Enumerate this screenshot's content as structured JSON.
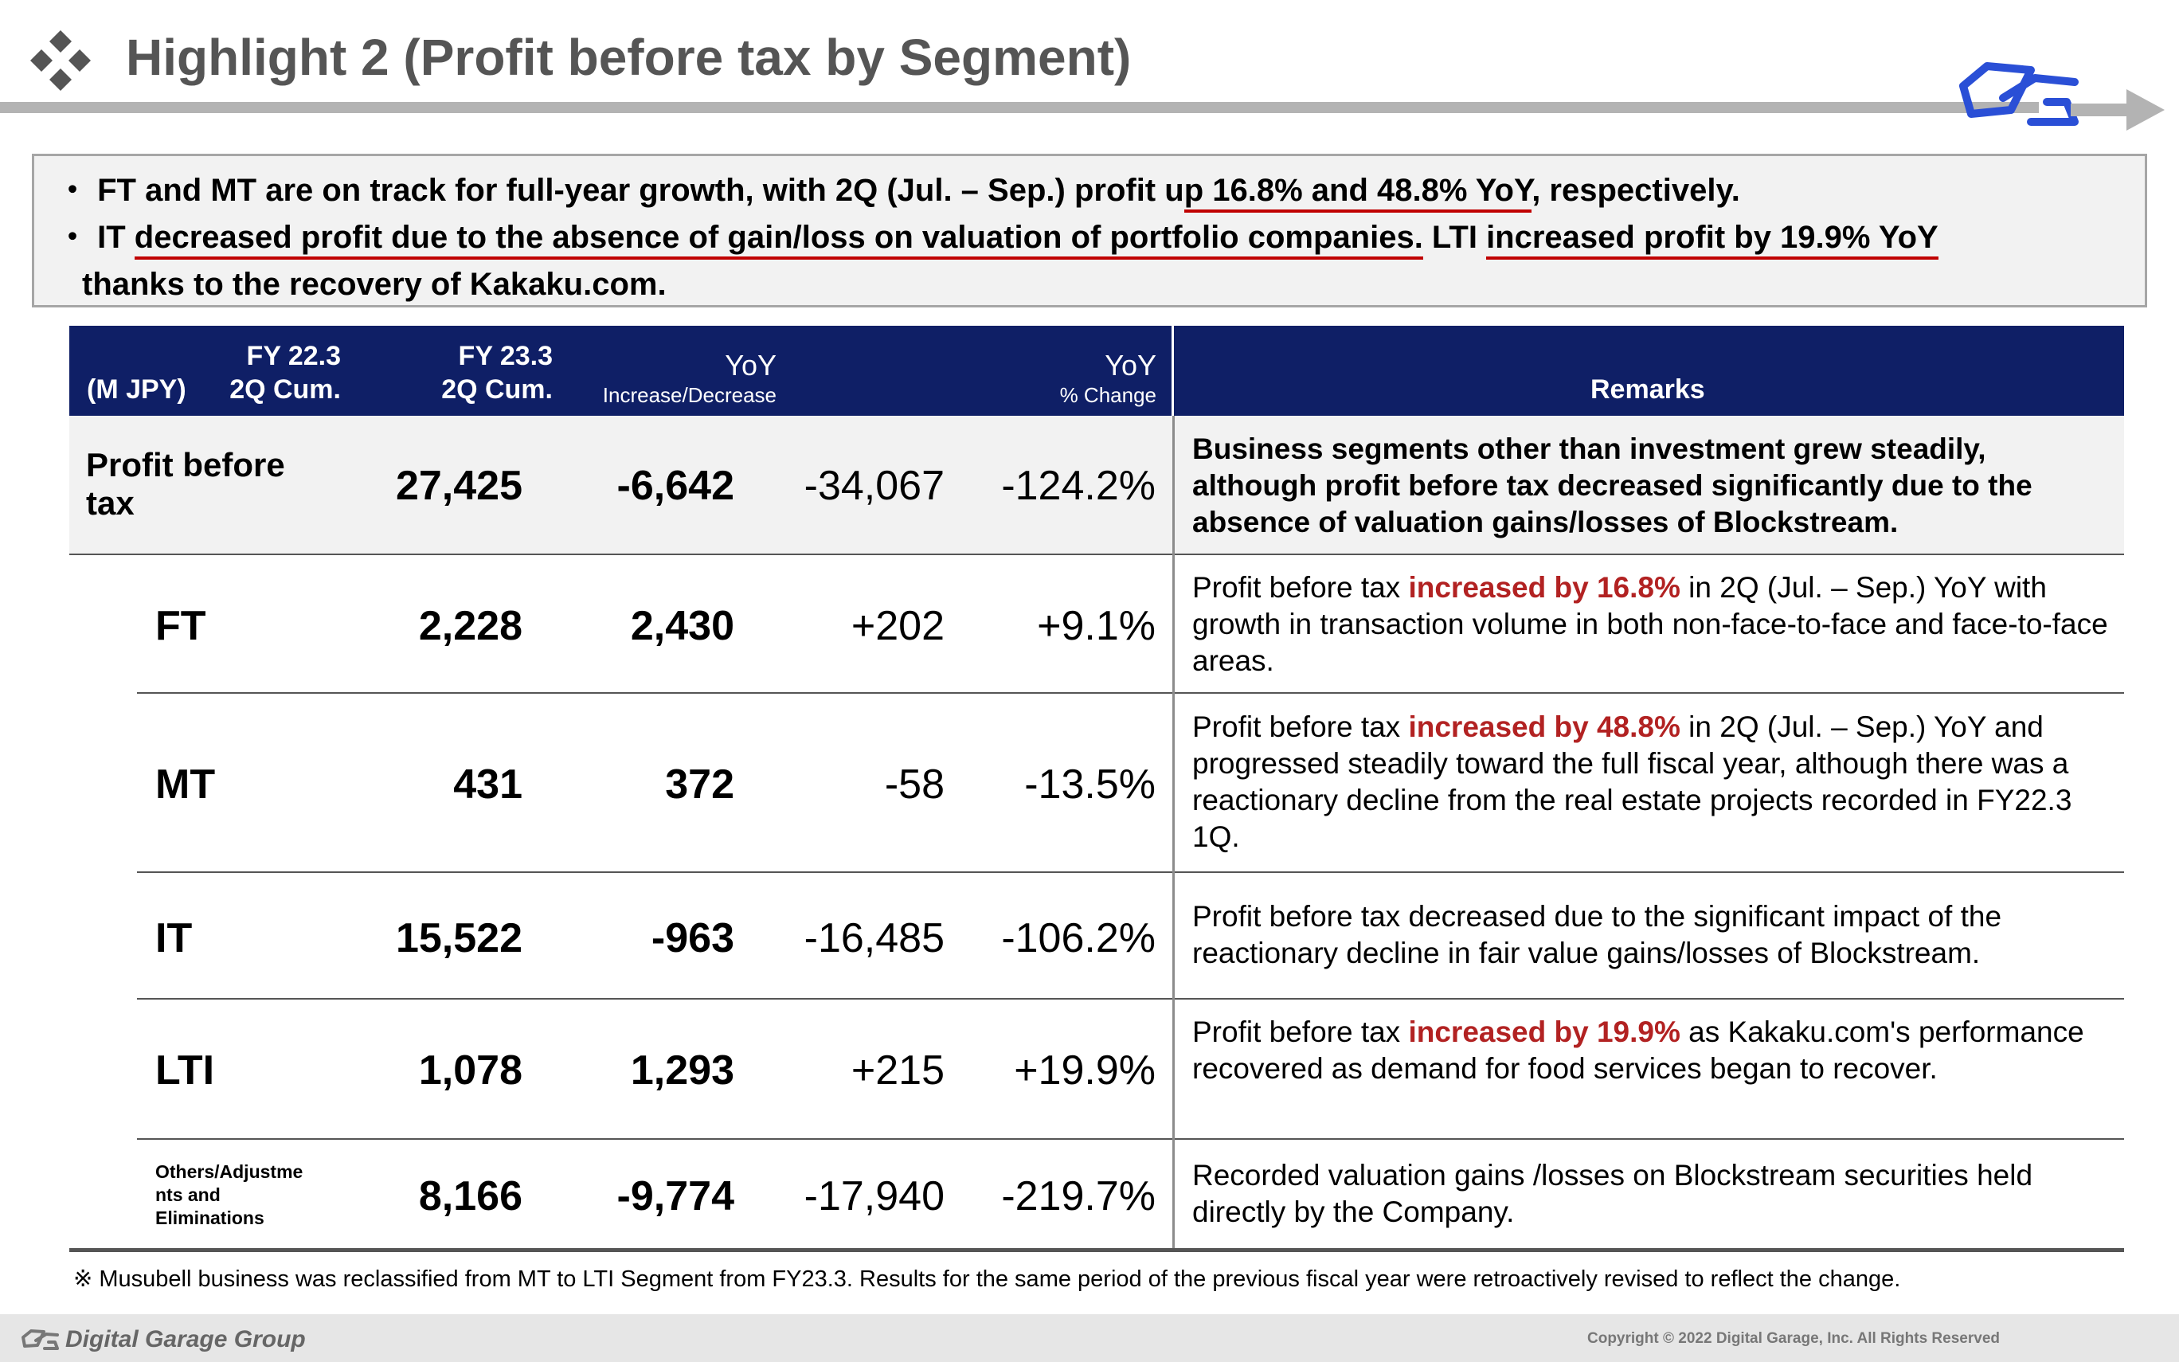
{
  "header": {
    "title": "Highlight 2 (Profit before tax by Segment)"
  },
  "summary": {
    "bullet": "・",
    "line1_a": "FT and MT are on track for full-year growth, with 2Q (Jul. – Sep.) profit u",
    "line1_b": "p 16.8% and 48.8% YoY",
    "line1_c": ", respectively.",
    "line2_a": "IT ",
    "line2_b": "decreased profit due to the absence of gain/loss on valuation of portfolio companies.",
    "line2_c": " LTI ",
    "line2_d": "increased profit by 19.9% YoY",
    "line3": "thanks to the recovery of Kakaku.com."
  },
  "table": {
    "unit": "(M JPY)",
    "col1_l1": "FY 22.3",
    "col1_l2": "2Q Cum.",
    "col2_l1": "FY 23.3",
    "col2_l2": "2Q Cum.",
    "col3_l1": "YoY",
    "col3_l2": "Increase/Decrease",
    "col4_l1": "YoY",
    "col4_l2": "% Change",
    "col5": "Remarks",
    "rows": [
      {
        "label_l1": "Profit before",
        "label_l2": "tax",
        "fy22": "27,425",
        "fy23": "-6,642",
        "inc": "-34,067",
        "pct": "-124.2%",
        "remark": "Business segments other than investment grew steadily, although profit before tax decreased significantly due to the absence of valuation gains/losses of Blockstream."
      },
      {
        "label": "FT",
        "fy22": "2,228",
        "fy23": "2,430",
        "inc": "+202",
        "pct": "+9.1%",
        "remark_a": "Profit before tax ",
        "remark_red": "increased by 16.8%",
        "remark_b": " in 2Q (Jul. – Sep.) YoY with growth in transaction volume in both non-face-to-face and face-to-face areas."
      },
      {
        "label": "MT",
        "fy22": "431",
        "fy23": "372",
        "inc": "-58",
        "pct": "-13.5%",
        "remark_a": "Profit before tax ",
        "remark_red": "increased by 48.8%",
        "remark_b": " in 2Q (Jul. – Sep.) YoY and progressed steadily toward the full fiscal year, although there was a reactionary decline from the real estate projects recorded in FY22.3 1Q."
      },
      {
        "label": "IT",
        "fy22": "15,522",
        "fy23": "-963",
        "inc": "-16,485",
        "pct": "-106.2%",
        "remark": "Profit before tax decreased due to the significant impact of the reactionary decline in fair value gains/losses of Blockstream."
      },
      {
        "label": "LTI",
        "fy22": "1,078",
        "fy23": "1,293",
        "inc": "+215",
        "pct": "+19.9%",
        "remark_a": "Profit before tax ",
        "remark_red": "increased by 19.9%",
        "remark_b": " as Kakaku.com's performance recovered as demand for food services began to recover."
      },
      {
        "label_l1": "Others/Adjustme",
        "label_l2": "nts and",
        "label_l3": "Eliminations",
        "fy22": "8,166",
        "fy23": "-9,774",
        "inc": "-17,940",
        "pct": "-219.7%",
        "remark": "Recorded valuation gains /losses on Blockstream securities held directly by the Company."
      }
    ]
  },
  "note": "※ Musubell business was reclassified from MT to LTI Segment from FY23.3. Results for the same period of the previous fiscal year were retroactively revised to reflect the change.",
  "footer": {
    "brand": "Digital Garage Group",
    "copyright": "Copyright © 2022 Digital Garage, Inc. All Rights Reserved"
  },
  "colors": {
    "header_bar": "#0f1f66",
    "highlight_red": "#b22222",
    "underline_red": "#c00000",
    "title_gray": "#555555",
    "logo_blue": "#2a4fd6"
  },
  "icons": [
    "diamond-cluster-icon",
    "dg-logo-icon",
    "arrow-right-icon"
  ]
}
